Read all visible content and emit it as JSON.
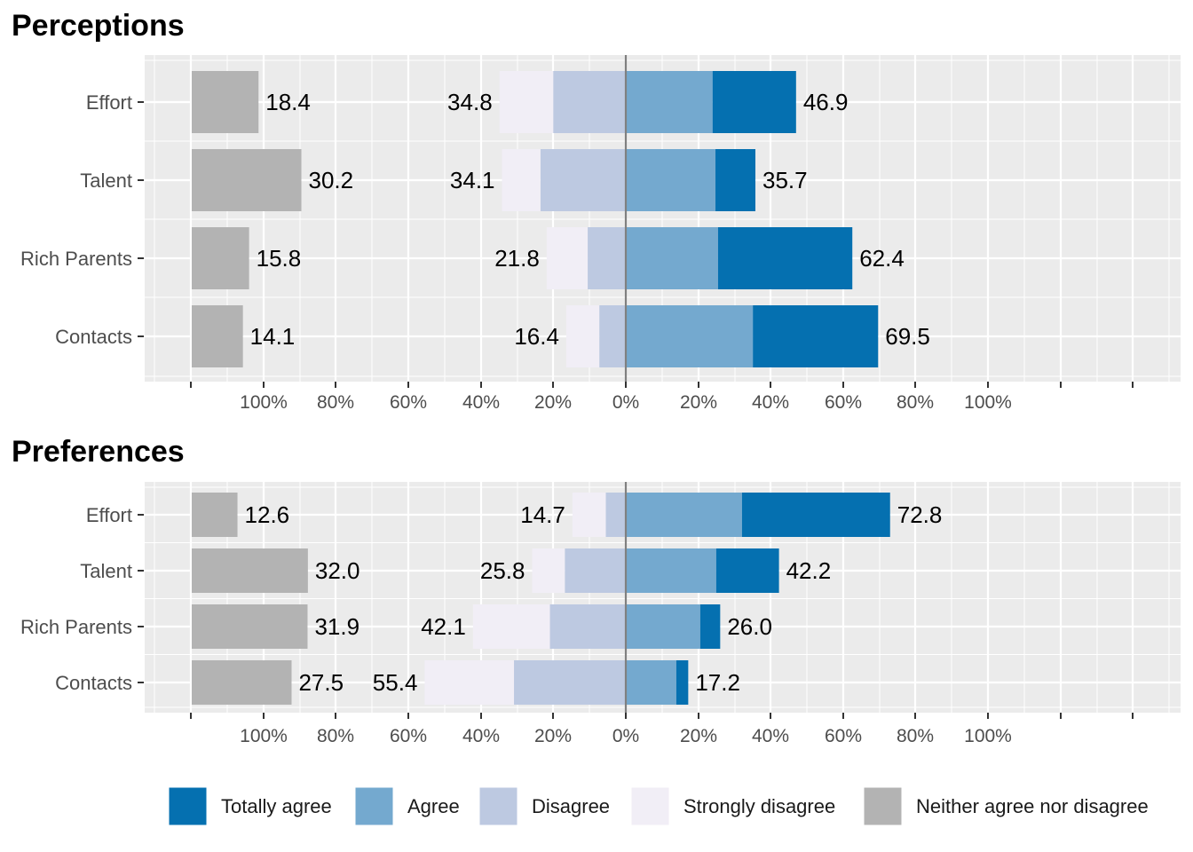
{
  "legend": [
    {
      "key": "totally_agree",
      "label": "Totally agree",
      "color": "#0570b0"
    },
    {
      "key": "agree",
      "label": "Agree",
      "color": "#74a9cf"
    },
    {
      "key": "disagree",
      "label": "Disagree",
      "color": "#bdc9e1"
    },
    {
      "key": "strongly_disagree",
      "label": "Strongly disagree",
      "color": "#f1eef6"
    },
    {
      "key": "neither",
      "label": "Neither agree nor disagree",
      "color": "#b3b3b3"
    }
  ],
  "colors": {
    "panel_bg": "#ebebeb",
    "grid": "#ffffff",
    "zero_line": "#808080"
  },
  "chart_data": [
    {
      "type": "bar",
      "stacking": "diverging",
      "title": "Perceptions",
      "categories": [
        "Effort",
        "Talent",
        "Rich Parents",
        "Contacts"
      ],
      "x_tick_labels": [
        "100%",
        "80%",
        "60%",
        "40%",
        "20%",
        "0%",
        "20%",
        "40%",
        "60%",
        "80%",
        "100%"
      ],
      "xlim": [
        -100,
        100
      ],
      "grid": true,
      "legend_position": "bottom",
      "series": [
        {
          "name": "Totally agree",
          "values": [
            23,
            11,
            37,
            34.5
          ]
        },
        {
          "name": "Agree",
          "values": [
            23.9,
            24.7,
            25.4,
            35
          ]
        },
        {
          "name": "Disagree",
          "values": [
            20,
            23.5,
            10.5,
            7.3
          ]
        },
        {
          "name": "Strongly disagree",
          "values": [
            14.8,
            10.6,
            11.3,
            9.1
          ]
        },
        {
          "name": "Neither agree nor disagree",
          "values": [
            18.4,
            30.2,
            15.8,
            14.1
          ]
        }
      ],
      "labels": {
        "agree_total": [
          46.9,
          35.7,
          62.4,
          69.5
        ],
        "disagree_total": [
          34.8,
          34.1,
          21.8,
          16.4
        ],
        "neither": [
          18.4,
          30.2,
          15.8,
          14.1
        ]
      }
    },
    {
      "type": "bar",
      "stacking": "diverging",
      "title": "Preferences",
      "categories": [
        "Effort",
        "Talent",
        "Rich Parents",
        "Contacts"
      ],
      "x_tick_labels": [
        "100%",
        "80%",
        "60%",
        "40%",
        "20%",
        "0%",
        "20%",
        "40%",
        "60%",
        "80%",
        "100%"
      ],
      "xlim": [
        -100,
        100
      ],
      "grid": true,
      "legend_position": "bottom",
      "series": [
        {
          "name": "Totally agree",
          "values": [
            40.8,
            17.3,
            5.5,
            3.3
          ]
        },
        {
          "name": "Agree",
          "values": [
            32,
            24.9,
            20.5,
            13.9
          ]
        },
        {
          "name": "Disagree",
          "values": [
            5.5,
            16.8,
            20.9,
            30.8
          ]
        },
        {
          "name": "Strongly disagree",
          "values": [
            9.2,
            9,
            21.2,
            24.6
          ]
        },
        {
          "name": "Neither agree nor disagree",
          "values": [
            12.6,
            32.0,
            31.9,
            27.5
          ]
        }
      ],
      "labels": {
        "agree_total": [
          72.8,
          42.2,
          26.0,
          17.2
        ],
        "disagree_total": [
          14.7,
          25.8,
          42.1,
          55.4
        ],
        "neither": [
          12.6,
          32.0,
          31.9,
          27.5
        ]
      }
    }
  ]
}
